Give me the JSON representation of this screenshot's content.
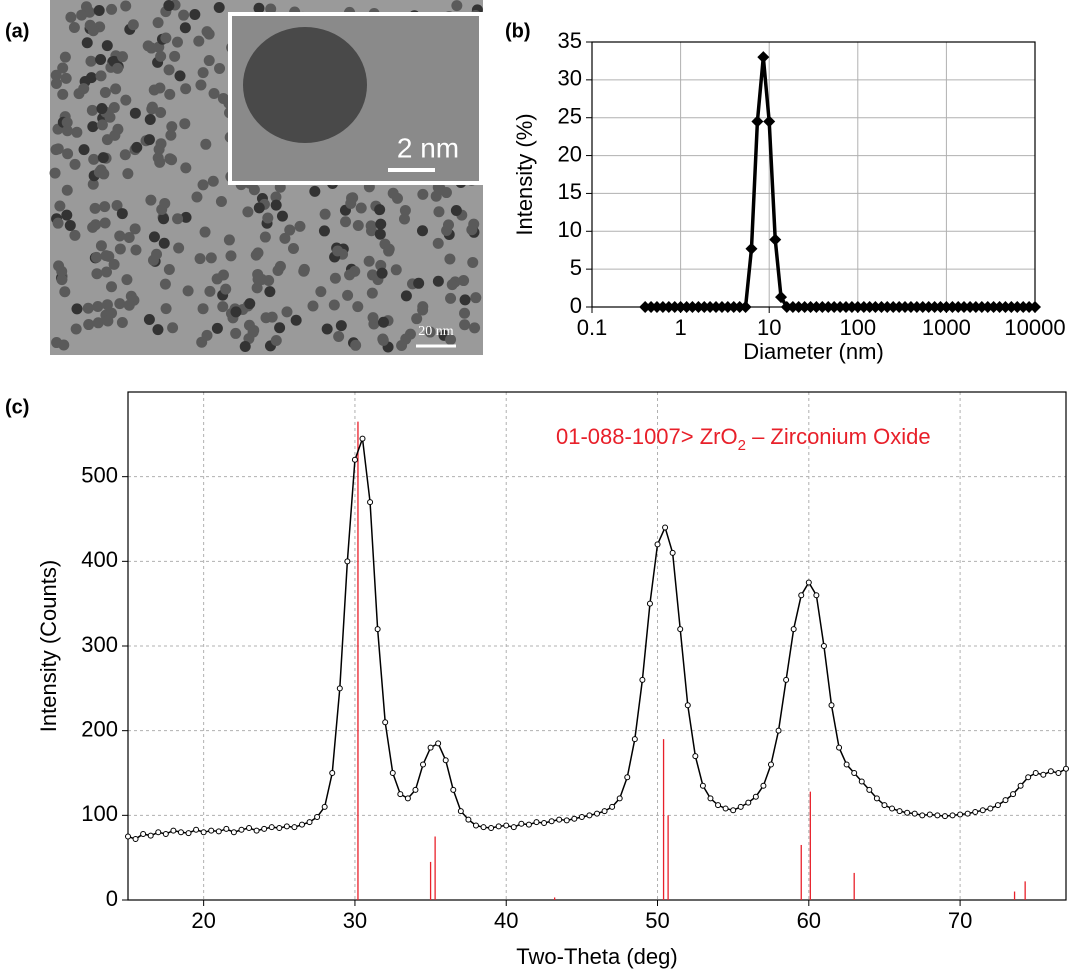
{
  "image_panel": {
    "label": "(a)",
    "inset_scale_bar": "2 nm",
    "scale_bar": "20 nm"
  },
  "chart_data": [
    {
      "type": "line",
      "panel_label": "(b)",
      "x_label": "Diameter (nm)",
      "y_label": "Intensity (%)",
      "xscale": "log",
      "xlim": [
        0.1,
        10000
      ],
      "xticks": [
        0.1,
        1,
        10,
        100,
        1000,
        10000
      ],
      "ylim": [
        0,
        35
      ],
      "yticks": [
        0,
        5,
        10,
        15,
        20,
        25,
        30,
        35
      ],
      "grid": true,
      "color": "#000000",
      "x": [
        0.398,
        0.464,
        0.541,
        0.631,
        0.736,
        0.858,
        1,
        1.17,
        1.36,
        1.59,
        1.85,
        2.15,
        2.51,
        2.93,
        3.41,
        3.98,
        4.64,
        5.41,
        6.31,
        7.36,
        8.58,
        10,
        11.7,
        13.6,
        15.8,
        18.5,
        21.5,
        25.1,
        29.3,
        34.1,
        39.8,
        46.4,
        54.1,
        63.1,
        73.6,
        85.8,
        100,
        117,
        136,
        158,
        185,
        215,
        251,
        293,
        341,
        398,
        464,
        541,
        631,
        736,
        858,
        1000,
        1170,
        1360,
        1580,
        1850,
        2150,
        2510,
        2930,
        3410,
        3980,
        4640,
        5410,
        6310,
        7360,
        8580,
        10000
      ],
      "values": [
        0,
        0,
        0,
        0,
        0,
        0,
        0,
        0,
        0,
        0,
        0,
        0,
        0,
        0,
        0,
        0,
        0,
        0,
        7.7,
        24.5,
        33,
        24.5,
        8.9,
        1.3,
        0,
        0,
        0,
        0,
        0,
        0,
        0,
        0,
        0,
        0,
        0,
        0,
        0,
        0,
        0,
        0,
        0,
        0,
        0,
        0,
        0,
        0,
        0,
        0,
        0,
        0,
        0,
        0,
        0,
        0,
        0,
        0,
        0,
        0,
        0,
        0,
        0,
        0,
        0,
        0,
        0,
        0,
        0
      ]
    },
    {
      "type": "scatter",
      "panel_label": "(c)",
      "x_label": "Two-Theta (deg)",
      "y_label": "Intensity (Counts)",
      "xlim": [
        15,
        77
      ],
      "xticks": [
        20,
        30,
        40,
        50,
        60,
        70
      ],
      "ylim": [
        0,
        600
      ],
      "yticks": [
        0,
        100,
        200,
        300,
        400,
        500
      ],
      "grid": true,
      "color": "#000000",
      "x": [
        15,
        15.5,
        16,
        16.5,
        17,
        17.5,
        18,
        18.5,
        19,
        19.5,
        20,
        20.5,
        21,
        21.5,
        22,
        22.5,
        23,
        23.5,
        24,
        24.5,
        25,
        25.5,
        26,
        26.5,
        27,
        27.5,
        28,
        28.5,
        29,
        29.5,
        30,
        30.5,
        31,
        31.5,
        32,
        32.5,
        33,
        33.5,
        34,
        34.5,
        35,
        35.5,
        36,
        36.5,
        37,
        37.5,
        38,
        38.5,
        39,
        39.5,
        40,
        40.5,
        41,
        41.5,
        42,
        42.5,
        43,
        43.5,
        44,
        44.5,
        45,
        45.5,
        46,
        46.5,
        47,
        47.5,
        48,
        48.5,
        49,
        49.5,
        50,
        50.5,
        51,
        51.5,
        52,
        52.5,
        53,
        53.5,
        54,
        54.5,
        55,
        55.5,
        56,
        56.5,
        57,
        57.5,
        58,
        58.5,
        59,
        59.5,
        60,
        60.5,
        61,
        61.5,
        62,
        62.5,
        63,
        63.5,
        64,
        64.5,
        65,
        65.5,
        66,
        66.5,
        67,
        67.5,
        68,
        68.5,
        69,
        69.5,
        70,
        70.5,
        71,
        71.5,
        72,
        72.5,
        73,
        73.5,
        74,
        74.5,
        75,
        75.5,
        76,
        76.5,
        77
      ],
      "values": [
        75,
        72,
        78,
        76,
        80,
        78,
        82,
        80,
        79,
        83,
        80,
        82,
        81,
        84,
        80,
        83,
        85,
        82,
        84,
        86,
        85,
        87,
        86,
        89,
        92,
        98,
        110,
        150,
        250,
        400,
        520,
        545,
        470,
        320,
        210,
        150,
        125,
        120,
        130,
        160,
        180,
        185,
        165,
        130,
        105,
        95,
        88,
        86,
        85,
        87,
        88,
        86,
        90,
        89,
        92,
        91,
        93,
        95,
        94,
        96,
        98,
        100,
        102,
        105,
        110,
        120,
        145,
        190,
        260,
        350,
        420,
        440,
        410,
        320,
        230,
        170,
        135,
        120,
        112,
        108,
        106,
        110,
        115,
        122,
        135,
        160,
        200,
        260,
        320,
        360,
        375,
        360,
        300,
        230,
        180,
        160,
        150,
        140,
        130,
        120,
        112,
        108,
        105,
        103,
        102,
        100,
        101,
        100,
        99,
        100,
        101,
        102,
        104,
        106,
        108,
        112,
        118,
        125,
        135,
        145,
        150,
        148,
        152,
        150,
        155
      ],
      "reference": {
        "label_parts": [
          "01-088-1007> ZrO",
          "2",
          " – Zirconium Oxide"
        ],
        "color": "#e8202a",
        "x": [
          30.2,
          35.0,
          35.3,
          43.2,
          50.4,
          50.7,
          59.5,
          60.1,
          63.0,
          73.6,
          74.3
        ],
        "values": [
          565,
          45,
          75,
          3,
          190,
          100,
          65,
          128,
          32,
          10,
          22
        ]
      }
    }
  ]
}
